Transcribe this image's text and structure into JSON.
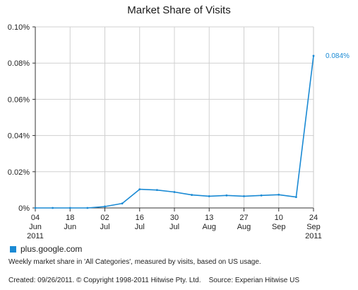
{
  "chart_data": {
    "type": "line",
    "title": "Market Share of Visits",
    "x": [
      "2011-06-04",
      "2011-06-11",
      "2011-06-18",
      "2011-06-25",
      "2011-07-02",
      "2011-07-09",
      "2011-07-16",
      "2011-07-23",
      "2011-07-30",
      "2011-08-06",
      "2011-08-13",
      "2011-08-20",
      "2011-08-27",
      "2011-09-03",
      "2011-09-10",
      "2011-09-17",
      "2011-09-24"
    ],
    "x_tick_labels": [
      {
        "date": "2011-06-04",
        "lines": [
          "04",
          "Jun",
          "2011"
        ]
      },
      {
        "date": "2011-06-18",
        "lines": [
          "18",
          "Jun"
        ]
      },
      {
        "date": "2011-07-02",
        "lines": [
          "02",
          "Jul"
        ]
      },
      {
        "date": "2011-07-16",
        "lines": [
          "16",
          "Jul"
        ]
      },
      {
        "date": "2011-07-30",
        "lines": [
          "30",
          "Jul"
        ]
      },
      {
        "date": "2011-08-13",
        "lines": [
          "13",
          "Aug"
        ]
      },
      {
        "date": "2011-08-27",
        "lines": [
          "27",
          "Aug"
        ]
      },
      {
        "date": "2011-09-10",
        "lines": [
          "10",
          "Sep"
        ]
      },
      {
        "date": "2011-09-24",
        "lines": [
          "24",
          "Sep",
          "2011"
        ]
      }
    ],
    "series": [
      {
        "name": "plus.google.com",
        "color": "#1a8ad4",
        "values": [
          0,
          0,
          0,
          0,
          0.0008,
          0.0025,
          0.0103,
          0.0099,
          0.0088,
          0.0072,
          0.0065,
          0.0069,
          0.0065,
          0.0069,
          0.0073,
          0.006,
          0.084
        ]
      }
    ],
    "ylim": [
      0,
      0.1
    ],
    "y_ticks": [
      0,
      0.02,
      0.04,
      0.06,
      0.08,
      0.1
    ],
    "y_tick_labels": [
      "0%",
      "0.02%",
      "0.04%",
      "0.06%",
      "0.08%",
      "0.10%"
    ],
    "end_label": "0.084%",
    "grid": true,
    "legend_position": "bottom-left",
    "xlabel": "",
    "ylabel": ""
  },
  "footnote": "Weekly market share in 'All Categories', measured by visits, based on US usage.",
  "credits": "Created: 09/26/2011. © Copyright 1998-2011 Hitwise Pty. Ltd.    Source: Experian Hitwise US"
}
